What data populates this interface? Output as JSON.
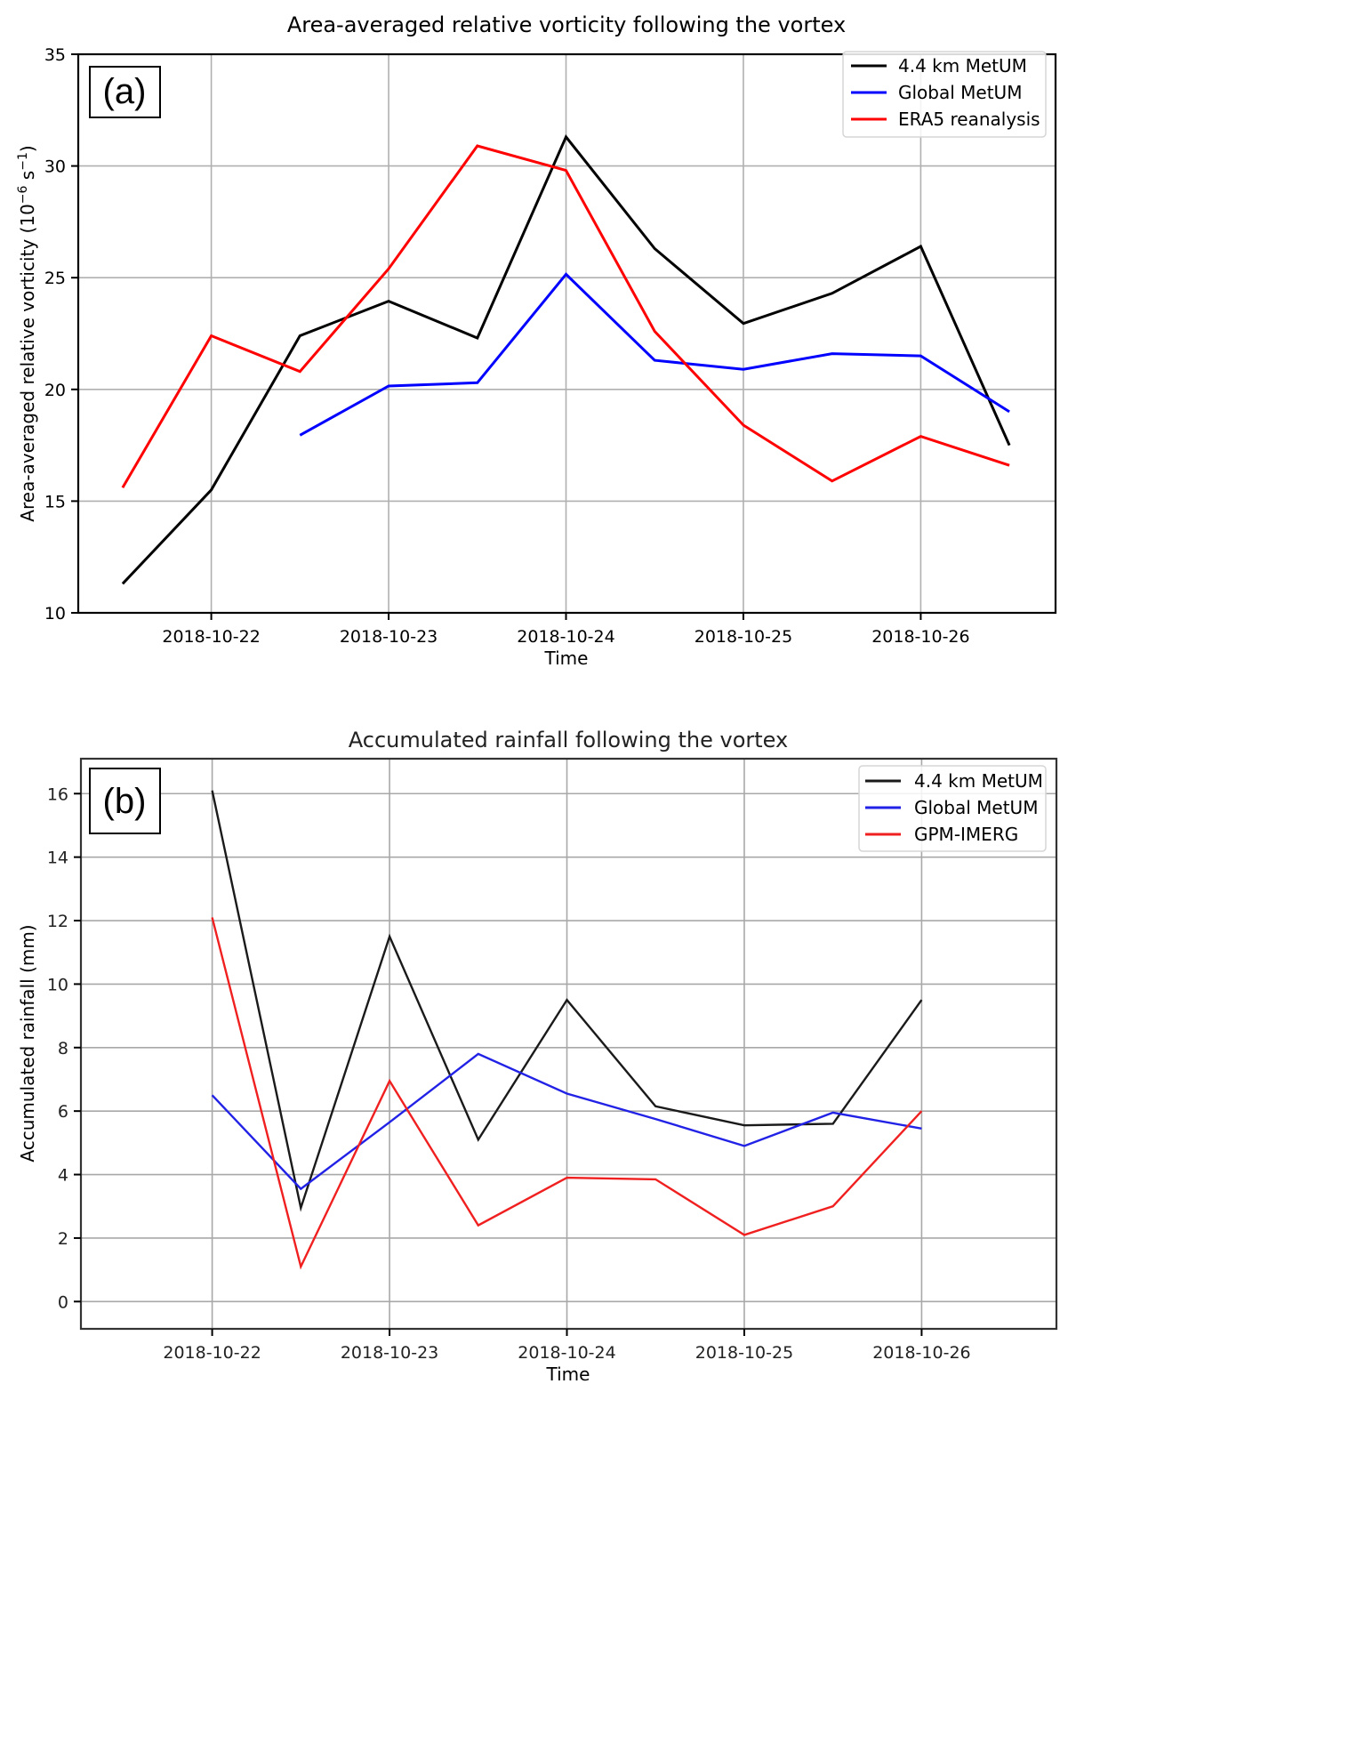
{
  "chart_data": [
    {
      "type": "line",
      "panel_label": "(a)",
      "title": "Area-averaged relative vorticity following the vortex",
      "xlabel": "Time",
      "ylabel": "Area-averaged relative vorticity (10⁻⁶ s⁻¹)",
      "ylabel_main": "Area-averaged relative vorticity (10",
      "ylabel_exp": "−6",
      "ylabel_mid": " s",
      "ylabel_exp2": "−1",
      "ylabel_end": ")",
      "x_unit": "days since 2018-10-22 00:00",
      "xlim": [
        -0.75,
        4.76
      ],
      "ylim": [
        10,
        35
      ],
      "yticks": [
        10,
        15,
        20,
        25,
        30,
        35
      ],
      "ytick_labels": [
        "10",
        "15",
        "20",
        "25",
        "30",
        "35"
      ],
      "xticks": [
        0,
        1,
        2,
        3,
        4
      ],
      "xtick_labels": [
        "2018-10-22",
        "2018-10-23",
        "2018-10-24",
        "2018-10-25",
        "2018-10-26"
      ],
      "grid": true,
      "legend_position": "top-right",
      "series": [
        {
          "name": "4.4 km MetUM",
          "color": "#000000",
          "x": [
            -0.5,
            0,
            0.5,
            1,
            1.5,
            2,
            2.5,
            3,
            3.5,
            4,
            4.5
          ],
          "values": [
            11.3,
            15.5,
            22.4,
            23.95,
            22.3,
            31.3,
            26.3,
            22.95,
            24.3,
            26.4,
            17.5
          ]
        },
        {
          "name": "Global MetUM",
          "color": "#0000ff",
          "x": [
            0.5,
            1,
            1.5,
            2,
            2.5,
            3,
            3.5,
            4,
            4.5
          ],
          "values": [
            17.95,
            20.15,
            20.3,
            25.15,
            21.3,
            20.9,
            21.6,
            21.5,
            19.0
          ]
        },
        {
          "name": "ERA5 reanalysis",
          "color": "#ff0000",
          "x": [
            -0.5,
            0,
            0.5,
            1,
            1.5,
            2,
            2.5,
            3,
            3.5,
            4,
            4.5
          ],
          "values": [
            15.6,
            22.4,
            20.8,
            25.4,
            30.9,
            29.8,
            22.6,
            18.4,
            15.9,
            17.9,
            16.6
          ]
        }
      ]
    },
    {
      "type": "line",
      "panel_label": "(b)",
      "title": "Accumulated rainfall following the vortex",
      "xlabel": "Time",
      "ylabel": "Accumulated rainfall (mm)",
      "x_unit": "days since 2018-10-22 00:00",
      "xlim": [
        -0.74,
        4.76
      ],
      "ylim": [
        -0.86,
        17.1
      ],
      "yticks": [
        0,
        2,
        4,
        6,
        8,
        10,
        12,
        14,
        16
      ],
      "ytick_labels": [
        "0",
        "2",
        "4",
        "6",
        "8",
        "10",
        "12",
        "14",
        "16"
      ],
      "xticks": [
        0,
        1,
        2,
        3,
        4
      ],
      "xtick_labels": [
        "2018-10-22",
        "2018-10-23",
        "2018-10-24",
        "2018-10-25",
        "2018-10-26"
      ],
      "grid": true,
      "legend_position": "top-right",
      "series": [
        {
          "name": "4.4 km MetUM",
          "color": "#1a1a1a",
          "x": [
            0,
            0.5,
            1,
            1.5,
            2,
            2.5,
            3,
            3.5,
            4
          ],
          "values": [
            16.1,
            2.95,
            11.5,
            5.1,
            9.5,
            6.15,
            5.55,
            5.6,
            9.5
          ]
        },
        {
          "name": "Global MetUM",
          "color": "#2222e6",
          "x": [
            0,
            0.5,
            1,
            1.5,
            2,
            2.5,
            3,
            3.5,
            4
          ],
          "values": [
            6.5,
            3.55,
            5.65,
            7.8,
            6.55,
            5.75,
            4.9,
            5.95,
            5.45
          ]
        },
        {
          "name": "GPM-IMERG",
          "color": "#f02020",
          "x": [
            0,
            0.5,
            1,
            1.5,
            2,
            2.5,
            3,
            3.5,
            4
          ],
          "values": [
            12.1,
            1.1,
            6.95,
            2.4,
            3.9,
            3.85,
            2.1,
            3.0,
            6.0
          ]
        }
      ]
    }
  ]
}
